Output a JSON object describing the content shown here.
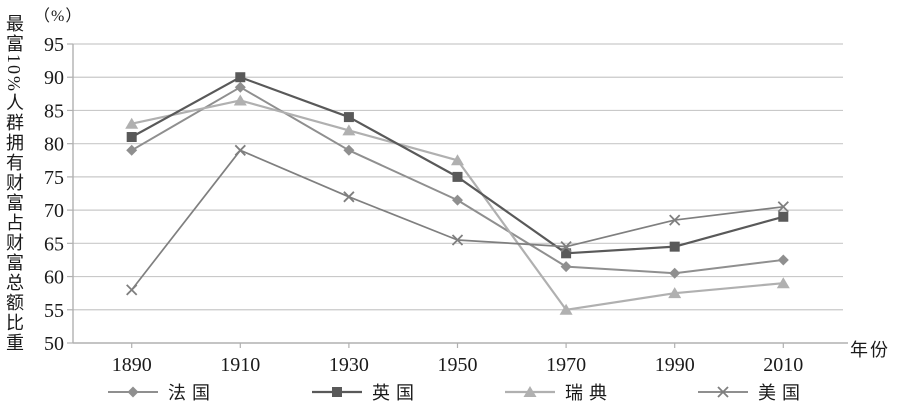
{
  "chart_data": {
    "type": "line",
    "unit_label": "（%）",
    "y_axis_label": "最富10%人群拥有财富占财富总额比重",
    "x_axis_label": "年份",
    "categories": [
      "1890",
      "1910",
      "1930",
      "1950",
      "1970",
      "1990",
      "2010"
    ],
    "ylim": [
      50,
      95
    ],
    "ytick_step": 5,
    "yticks": [
      "95",
      "90",
      "85",
      "80",
      "75",
      "70",
      "65",
      "60",
      "55",
      "50"
    ],
    "grid": true,
    "legend_position": "bottom",
    "series": [
      {
        "name": "法国",
        "marker": "diamond",
        "color": "#8f8f8f",
        "values": [
          79,
          88.5,
          79,
          71.5,
          61.5,
          60.5,
          62.5
        ]
      },
      {
        "name": "英国",
        "marker": "square",
        "color": "#595959",
        "values": [
          81,
          90,
          84,
          75,
          63.5,
          64.5,
          69
        ]
      },
      {
        "name": "瑞典",
        "marker": "triangle",
        "color": "#b0b0b0",
        "values": [
          83,
          86.5,
          82,
          77.5,
          55,
          57.5,
          59
        ]
      },
      {
        "name": "美国",
        "marker": "x",
        "color": "#7f7f7f",
        "values": [
          58,
          79,
          72,
          65.5,
          64.5,
          68.5,
          70.5
        ]
      }
    ],
    "colors": {
      "gridline": "#c9c9c9",
      "axis": "#b0b0b0",
      "text": "#1a1a1a"
    }
  }
}
